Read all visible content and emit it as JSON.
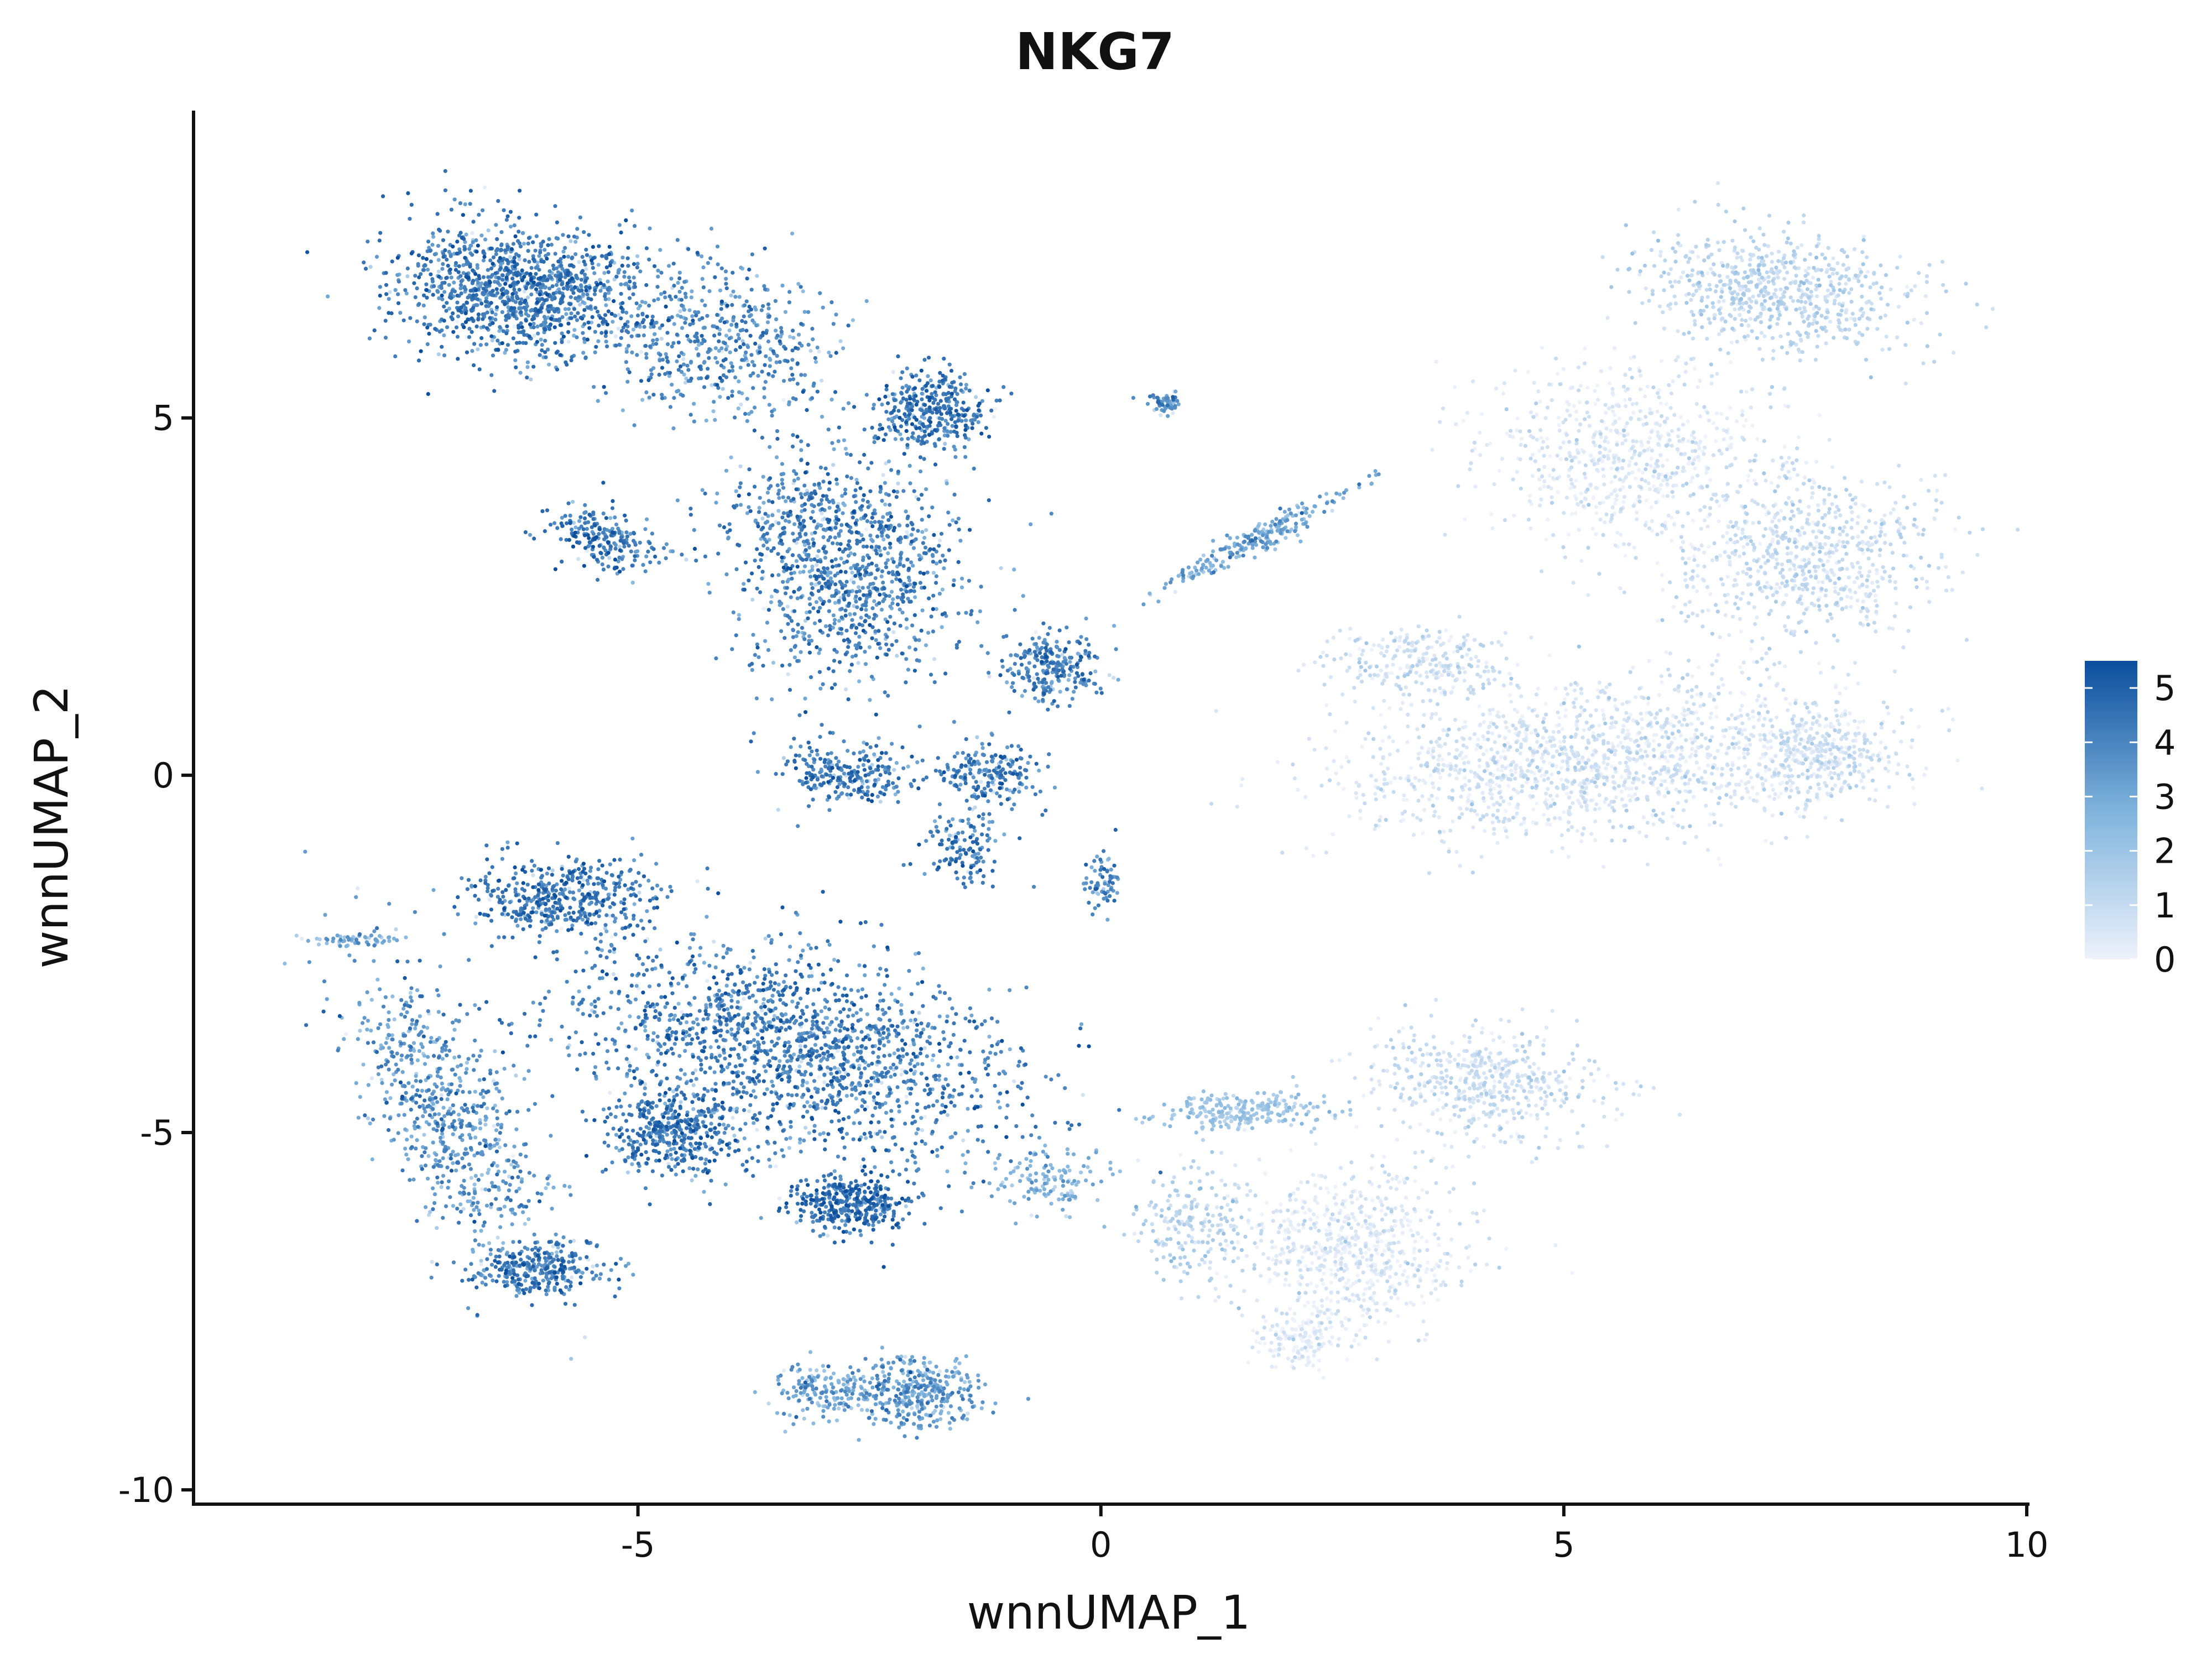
{
  "chart_data": {
    "type": "scatter",
    "title": "NKG7",
    "xlabel": "wnnUMAP_1",
    "ylabel": "wnnUMAP_2",
    "xlim": [
      -9.8,
      10
    ],
    "ylim": [
      -10.2,
      9.3
    ],
    "x_ticks": [
      -5,
      0,
      5,
      10
    ],
    "y_ticks": [
      -10,
      -5,
      0,
      5
    ],
    "x_tick_labels": [
      "-5",
      "0",
      "5",
      "10"
    ],
    "y_tick_labels": [
      "-10",
      "-5",
      "0",
      "5"
    ],
    "grid": false,
    "legend": {
      "placement": "right",
      "type": "colorbar",
      "ticks": [
        0,
        1,
        2,
        3,
        4,
        5
      ],
      "tick_labels": [
        "0",
        "1",
        "2",
        "3",
        "4",
        "5"
      ],
      "range": [
        0,
        5.5
      ],
      "colors": {
        "low": "#eef2fb",
        "mid": "#7fb3dc",
        "high": "#0b4e9c"
      }
    },
    "clusters": [
      {
        "cx": -6.3,
        "cy": 6.8,
        "sx": 1.05,
        "sy": 0.75,
        "rot": -0.15,
        "n": 1200,
        "expr": 4.2
      },
      {
        "cx": -4.2,
        "cy": 6.1,
        "sx": 1.1,
        "sy": 0.9,
        "rot": -0.3,
        "n": 550,
        "expr": 3.8
      },
      {
        "cx": -2.8,
        "cy": 3.0,
        "sx": 1.0,
        "sy": 1.25,
        "rot": 0.2,
        "n": 1100,
        "expr": 4.0
      },
      {
        "cx": -1.8,
        "cy": 5.1,
        "sx": 0.5,
        "sy": 0.45,
        "rot": 0.0,
        "n": 350,
        "expr": 4.3
      },
      {
        "cx": -5.4,
        "cy": 3.3,
        "sx": 0.5,
        "sy": 0.3,
        "rot": -0.4,
        "n": 220,
        "expr": 4.2
      },
      {
        "cx": -0.5,
        "cy": 1.5,
        "sx": 0.45,
        "sy": 0.35,
        "rot": 0.0,
        "n": 260,
        "expr": 3.9
      },
      {
        "cx": -2.7,
        "cy": 0.0,
        "sx": 0.6,
        "sy": 0.35,
        "rot": 0.0,
        "n": 260,
        "expr": 4.2
      },
      {
        "cx": -1.5,
        "cy": -1.0,
        "sx": 0.35,
        "sy": 0.45,
        "rot": 0.0,
        "n": 130,
        "expr": 4.2
      },
      {
        "cx": -1.2,
        "cy": 0.0,
        "sx": 0.5,
        "sy": 0.4,
        "rot": 0.0,
        "n": 200,
        "expr": 4.1
      },
      {
        "cx": 0.7,
        "cy": 5.2,
        "sx": 0.15,
        "sy": 0.12,
        "rot": 0.0,
        "n": 60,
        "expr": 3.6
      },
      {
        "cx": 0.0,
        "cy": -1.5,
        "sx": 0.18,
        "sy": 0.35,
        "rot": 0.0,
        "n": 70,
        "expr": 3.9
      },
      {
        "cx": 1.7,
        "cy": 3.3,
        "sx": 0.95,
        "sy": 0.13,
        "rot": 0.62,
        "n": 230,
        "expr": 3.0
      },
      {
        "cx": -5.8,
        "cy": -1.7,
        "sx": 0.8,
        "sy": 0.45,
        "rot": 0.0,
        "n": 450,
        "expr": 4.3
      },
      {
        "cx": -3.3,
        "cy": -3.8,
        "sx": 2.0,
        "sy": 1.05,
        "rot": -0.35,
        "n": 1700,
        "expr": 4.1
      },
      {
        "cx": -4.6,
        "cy": -5.0,
        "sx": 0.6,
        "sy": 0.5,
        "rot": 0.0,
        "n": 420,
        "expr": 4.3
      },
      {
        "cx": -2.7,
        "cy": -6.0,
        "sx": 0.6,
        "sy": 0.35,
        "rot": 0.0,
        "n": 380,
        "expr": 4.5
      },
      {
        "cx": -7.0,
        "cy": -4.8,
        "sx": 0.6,
        "sy": 1.7,
        "rot": 0.4,
        "n": 700,
        "expr": 3.6
      },
      {
        "cx": -6.1,
        "cy": -6.9,
        "sx": 0.6,
        "sy": 0.3,
        "rot": 0.0,
        "n": 320,
        "expr": 4.1
      },
      {
        "cx": -2.0,
        "cy": -8.6,
        "sx": 0.55,
        "sy": 0.4,
        "rot": 0.0,
        "n": 360,
        "expr": 3.3
      },
      {
        "cx": -3.0,
        "cy": -8.6,
        "sx": 0.4,
        "sy": 0.3,
        "rot": 0.0,
        "n": 160,
        "expr": 3.1
      },
      {
        "cx": -8.0,
        "cy": -2.3,
        "sx": 0.45,
        "sy": 0.07,
        "rot": 0.0,
        "n": 60,
        "expr": 2.7
      },
      {
        "cx": -0.5,
        "cy": -5.7,
        "sx": 0.6,
        "sy": 0.4,
        "rot": 0.0,
        "n": 130,
        "expr": 2.6
      },
      {
        "cx": 7.3,
        "cy": 6.8,
        "sx": 1.2,
        "sy": 0.7,
        "rot": -0.2,
        "n": 700,
        "expr": 1.1
      },
      {
        "cx": 5.7,
        "cy": 4.5,
        "sx": 1.3,
        "sy": 1.0,
        "rot": 0.0,
        "n": 700,
        "expr": 0.35
      },
      {
        "cx": 7.6,
        "cy": 3.0,
        "sx": 1.2,
        "sy": 0.9,
        "rot": 0.2,
        "n": 700,
        "expr": 0.8
      },
      {
        "cx": 5.3,
        "cy": 0.2,
        "sx": 2.2,
        "sy": 0.9,
        "rot": 0.1,
        "n": 1500,
        "expr": 0.5
      },
      {
        "cx": 7.8,
        "cy": 0.3,
        "sx": 0.6,
        "sy": 0.55,
        "rot": 0.0,
        "n": 350,
        "expr": 0.7
      },
      {
        "cx": 3.4,
        "cy": 1.6,
        "sx": 0.8,
        "sy": 0.4,
        "rot": 0.0,
        "n": 250,
        "expr": 0.7
      },
      {
        "cx": 4.2,
        "cy": -4.3,
        "sx": 1.0,
        "sy": 0.6,
        "rot": -0.15,
        "n": 500,
        "expr": 0.8
      },
      {
        "cx": 2.7,
        "cy": -6.6,
        "sx": 1.0,
        "sy": 0.9,
        "rot": -0.3,
        "n": 700,
        "expr": 0.3
      },
      {
        "cx": 1.5,
        "cy": -4.7,
        "sx": 0.8,
        "sy": 0.2,
        "rot": 0.05,
        "n": 240,
        "expr": 1.9
      },
      {
        "cx": 1.0,
        "cy": -6.3,
        "sx": 0.5,
        "sy": 0.6,
        "rot": 0.0,
        "n": 200,
        "expr": 1.3
      },
      {
        "cx": 2.2,
        "cy": -7.9,
        "sx": 0.4,
        "sy": 0.35,
        "rot": 0.0,
        "n": 160,
        "expr": 0.2
      }
    ]
  }
}
